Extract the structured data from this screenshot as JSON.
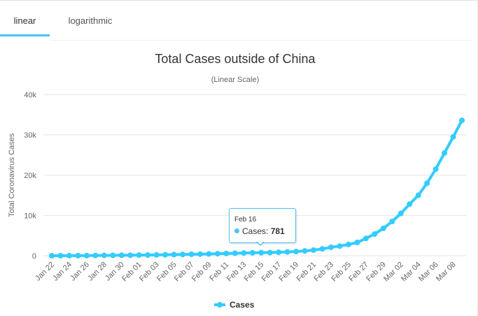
{
  "tabs": [
    {
      "label": "linear",
      "active": true
    },
    {
      "label": "logarithmic",
      "active": false
    }
  ],
  "colors": {
    "series": "#33ccff",
    "accent": "#4cc3f0",
    "grid": "#e6e6e6",
    "text": "#333333"
  },
  "chart_data": {
    "type": "line",
    "title": "Total Cases outside of China",
    "subtitle": "(Linear Scale)",
    "ylabel": "Total Coronavirus Cases",
    "xlabel": "",
    "ylim": [
      0,
      40000
    ],
    "yticks": [
      0,
      10000,
      20000,
      30000,
      40000
    ],
    "ytick_labels": [
      "0",
      "10k",
      "20k",
      "30k",
      "40k"
    ],
    "grid": true,
    "legend": "bottom-center",
    "x": [
      "Jan 22",
      "Jan 23",
      "Jan 24",
      "Jan 25",
      "Jan 26",
      "Jan 27",
      "Jan 28",
      "Jan 29",
      "Jan 30",
      "Jan 31",
      "Feb 01",
      "Feb 02",
      "Feb 03",
      "Feb 04",
      "Feb 05",
      "Feb 06",
      "Feb 07",
      "Feb 08",
      "Feb 09",
      "Feb 10",
      "Feb 11",
      "Feb 12",
      "Feb 13",
      "Feb 14",
      "Feb 15",
      "Feb 16",
      "Feb 17",
      "Feb 18",
      "Feb 19",
      "Feb 20",
      "Feb 21",
      "Feb 22",
      "Feb 23",
      "Feb 24",
      "Feb 25",
      "Feb 26",
      "Feb 27",
      "Feb 28",
      "Feb 29",
      "Mar 01",
      "Mar 02",
      "Mar 03",
      "Mar 04",
      "Mar 05",
      "Mar 06",
      "Mar 07",
      "Mar 08",
      "Mar 09"
    ],
    "xtick_labels": [
      "Jan 22",
      "Jan 24",
      "Jan 26",
      "Jan 28",
      "Jan 30",
      "Feb 01",
      "Feb 03",
      "Feb 05",
      "Feb 07",
      "Feb 09",
      "Feb 11",
      "Feb 13",
      "Feb 15",
      "Feb 17",
      "Feb 19",
      "Feb 21",
      "Feb 23",
      "Feb 25",
      "Feb 27",
      "Feb 29",
      "Mar 02",
      "Mar 04",
      "Mar 06",
      "Mar 08"
    ],
    "series": [
      {
        "name": "Cases",
        "values": [
          6,
          8,
          14,
          25,
          40,
          60,
          80,
          100,
          120,
          140,
          160,
          180,
          210,
          240,
          280,
          320,
          360,
          400,
          450,
          510,
          560,
          620,
          680,
          730,
          760,
          781,
          860,
          940,
          1050,
          1200,
          1400,
          1700,
          2100,
          2400,
          2800,
          3300,
          4300,
          5400,
          6800,
          8500,
          10500,
          12800,
          15000,
          18000,
          21500,
          25500,
          29500,
          33600
        ]
      }
    ],
    "tooltip": {
      "date": "Feb 16",
      "series": "Cases",
      "label": "Cases:",
      "value": "781"
    }
  }
}
